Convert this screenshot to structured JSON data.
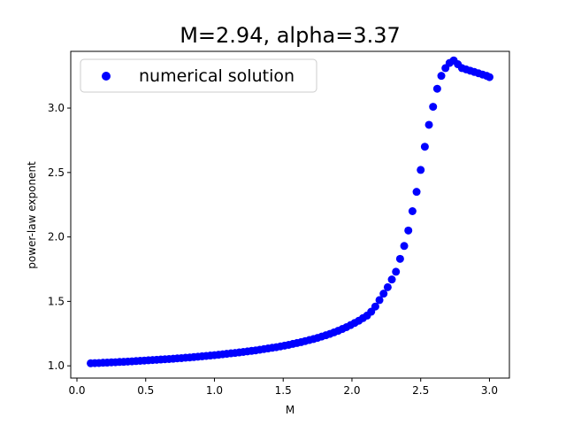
{
  "chart_data": {
    "type": "scatter",
    "title": "M=2.94, alpha=3.37",
    "xlabel": "M",
    "ylabel": "power-law exponent",
    "xlim": [
      -0.045,
      3.145
    ],
    "ylim": [
      0.905,
      3.44
    ],
    "xticks": [
      0.0,
      0.5,
      1.0,
      1.5,
      2.0,
      2.5,
      3.0
    ],
    "xtick_labels": [
      "0.0",
      "0.5",
      "1.0",
      "1.5",
      "2.0",
      "2.5",
      "3.0"
    ],
    "yticks": [
      1.0,
      1.5,
      2.0,
      2.5,
      3.0
    ],
    "ytick_labels": [
      "1.0",
      "1.5",
      "2.0",
      "2.5",
      "3.0"
    ],
    "grid": false,
    "legend": {
      "position": "top-left",
      "entries": [
        "numerical solution"
      ]
    },
    "series": [
      {
        "name": "numerical solution",
        "color": "#0000ff",
        "x": [
          0.1,
          0.13,
          0.16,
          0.19,
          0.22,
          0.25,
          0.28,
          0.31,
          0.34,
          0.37,
          0.4,
          0.43,
          0.46,
          0.49,
          0.52,
          0.55,
          0.58,
          0.61,
          0.64,
          0.67,
          0.7,
          0.73,
          0.76,
          0.79,
          0.82,
          0.85,
          0.88,
          0.91,
          0.94,
          0.97,
          1.0,
          1.03,
          1.06,
          1.09,
          1.12,
          1.15,
          1.18,
          1.21,
          1.24,
          1.27,
          1.3,
          1.33,
          1.36,
          1.39,
          1.42,
          1.45,
          1.48,
          1.51,
          1.54,
          1.57,
          1.6,
          1.63,
          1.66,
          1.69,
          1.72,
          1.75,
          1.78,
          1.81,
          1.84,
          1.87,
          1.9,
          1.93,
          1.96,
          1.99,
          2.02,
          2.05,
          2.08,
          2.11,
          2.14,
          2.17,
          2.2,
          2.23,
          2.26,
          2.29,
          2.32,
          2.35,
          2.38,
          2.41,
          2.44,
          2.47,
          2.5,
          2.53,
          2.56,
          2.59,
          2.62,
          2.65,
          2.68,
          2.71,
          2.74,
          2.77,
          2.8,
          2.83,
          2.86,
          2.89,
          2.92,
          2.95,
          2.98,
          3.0
        ],
        "y": [
          1.02,
          1.021,
          1.022,
          1.024,
          1.025,
          1.027,
          1.028,
          1.03,
          1.031,
          1.033,
          1.035,
          1.037,
          1.039,
          1.041,
          1.043,
          1.045,
          1.047,
          1.049,
          1.051,
          1.053,
          1.055,
          1.058,
          1.06,
          1.063,
          1.065,
          1.068,
          1.071,
          1.074,
          1.077,
          1.08,
          1.083,
          1.086,
          1.09,
          1.093,
          1.097,
          1.1,
          1.104,
          1.108,
          1.112,
          1.116,
          1.12,
          1.125,
          1.13,
          1.135,
          1.14,
          1.145,
          1.151,
          1.157,
          1.163,
          1.17,
          1.177,
          1.184,
          1.192,
          1.2,
          1.208,
          1.217,
          1.227,
          1.237,
          1.248,
          1.26,
          1.272,
          1.286,
          1.3,
          1.316,
          1.333,
          1.35,
          1.37,
          1.39,
          1.42,
          1.46,
          1.51,
          1.56,
          1.61,
          1.67,
          1.73,
          1.83,
          1.93,
          2.05,
          2.2,
          2.35,
          2.52,
          2.7,
          2.87,
          3.01,
          3.15,
          3.25,
          3.31,
          3.35,
          3.37,
          3.34,
          3.31,
          3.3,
          3.29,
          3.28,
          3.27,
          3.26,
          3.25,
          3.24
        ]
      }
    ]
  }
}
